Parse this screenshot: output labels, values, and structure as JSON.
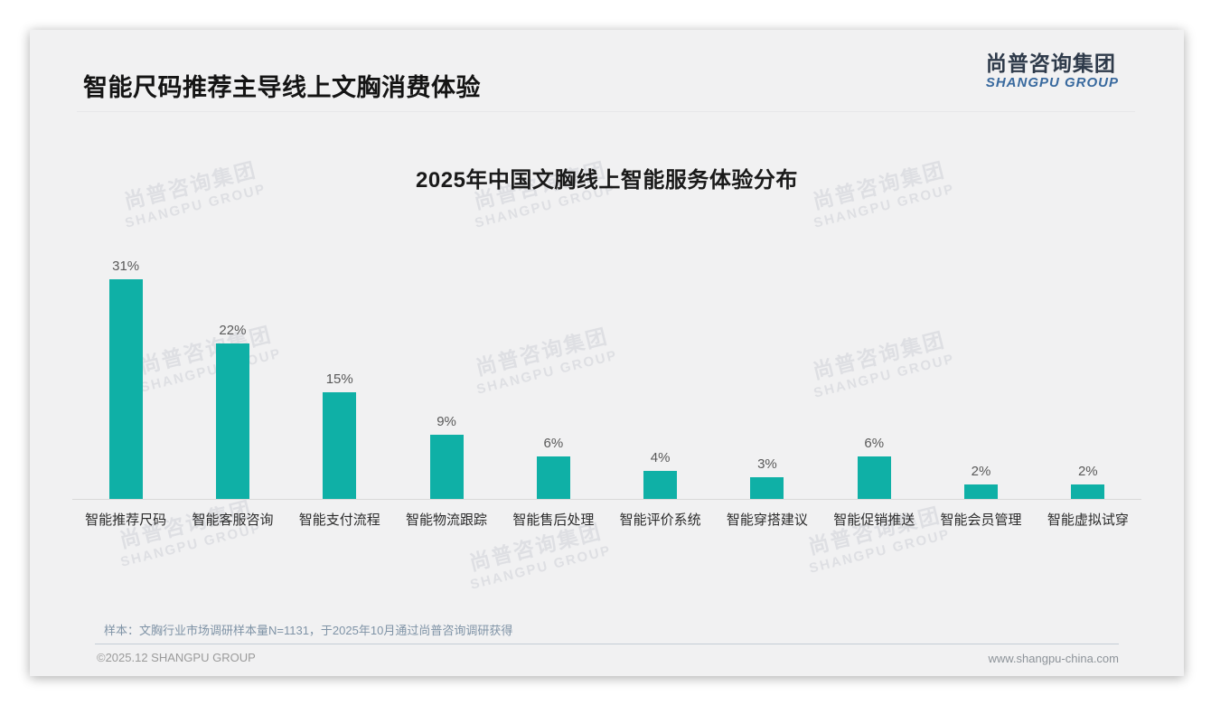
{
  "page": {
    "title": "智能尺码推荐主导线上文胸消费体验",
    "logo": {
      "cn": "尚普咨询集团",
      "en": "SHANGPU GROUP"
    },
    "watermark": {
      "cn": "尚普咨询集团",
      "en": "SHANGPU GROUP"
    },
    "note": "样本：文胸行业市场调研样本量N=1131，于2025年10月通过尚普咨询调研获得",
    "footer": {
      "copyright": "©2025.12 SHANGPU GROUP",
      "website": "www.shangpu-china.com"
    },
    "colors": {
      "accent_teal": "#0fb0a6",
      "logo_navy": "#2e3a4a",
      "logo_blue": "#38699e"
    }
  },
  "chart_data": {
    "type": "bar",
    "title": "2025年中国文胸线上智能服务体验分布",
    "categories": [
      "智能推荐尺码",
      "智能客服咨询",
      "智能支付流程",
      "智能物流跟踪",
      "智能售后处理",
      "智能评价系统",
      "智能穿搭建议",
      "智能促销推送",
      "智能会员管理",
      "智能虚拟试穿"
    ],
    "values": [
      31,
      22,
      15,
      9,
      6,
      4,
      3,
      6,
      2,
      2
    ],
    "unit": "%",
    "bar_color": "#0fb0a6",
    "ylim": [
      0,
      35
    ],
    "grid": false,
    "legend": false,
    "value_labels_shown": true,
    "xlabel": "",
    "ylabel": ""
  }
}
